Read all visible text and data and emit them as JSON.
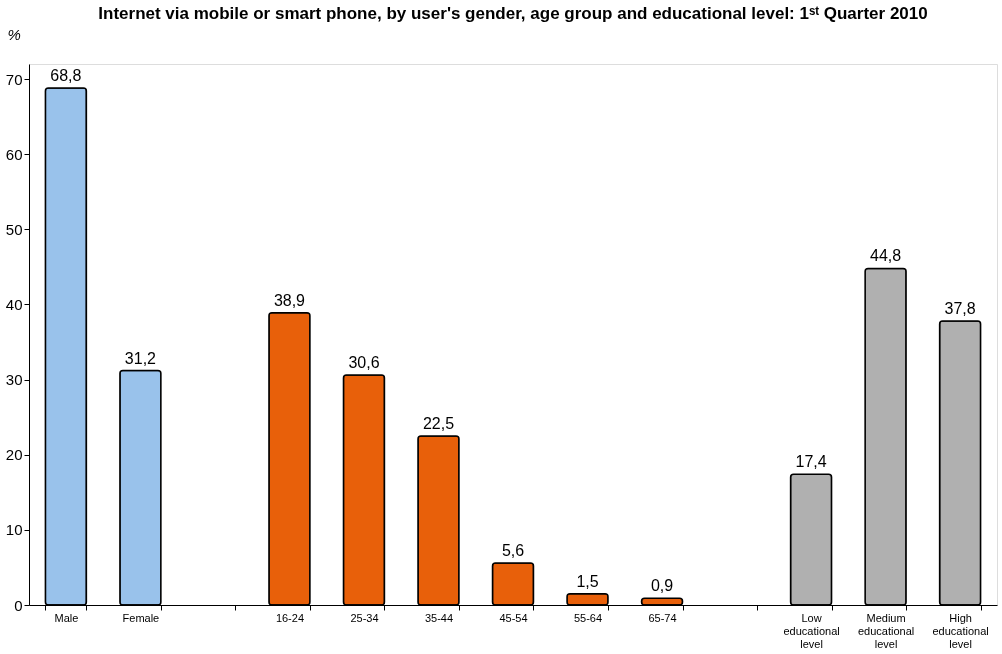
{
  "chart_data": {
    "type": "bar",
    "title": "Internet via mobile or smart phone, by user's gender, age group and educational level: 1ˢᵗ Quarter 2010",
    "ylabel": "%",
    "categories": [
      "Male",
      "Female",
      null,
      "16-24",
      "25-34",
      "35-44",
      "45-54",
      "55-64",
      "65-74",
      null,
      "Low educational level",
      "Medium educational level",
      "High educational level"
    ],
    "values": [
      68.8,
      31.2,
      null,
      38.9,
      30.6,
      22.5,
      5.6,
      1.5,
      0.9,
      null,
      17.4,
      44.8,
      37.8
    ],
    "value_labels": [
      "68,8",
      "31,2",
      null,
      "38,9",
      "30,6",
      "22,5",
      "5,6",
      "1,5",
      "0,9",
      null,
      "17,4",
      "44,8",
      "37,8"
    ],
    "colors": [
      "#99c2eb",
      "#99c2eb",
      "#99c2eb",
      "#e8600a",
      "#e8600a",
      "#e8600a",
      "#e8600a",
      "#e8600a",
      "#e8600a",
      "#b0b0b0",
      "#b0b0b0",
      "#b0b0b0",
      "#b0b0b0"
    ],
    "ylim": [
      0,
      72
    ],
    "yticks": [
      0,
      10,
      20,
      30,
      40,
      50,
      60,
      70
    ],
    "grid": false
  }
}
